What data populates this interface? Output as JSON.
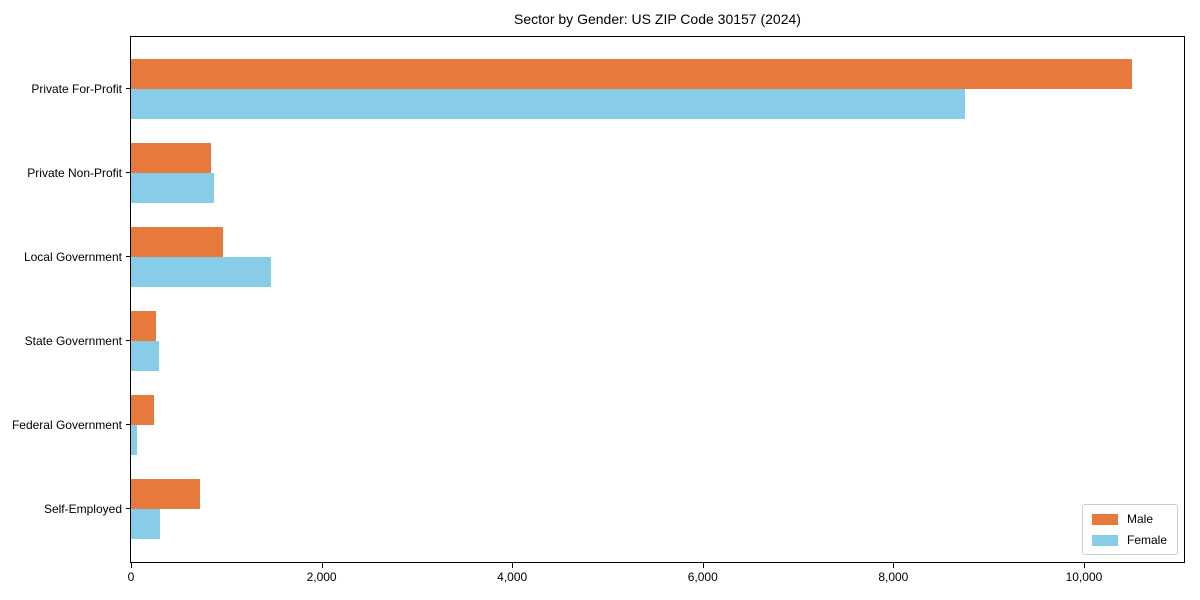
{
  "chart_data": {
    "type": "bar",
    "orientation": "horizontal",
    "title": "Sector by Gender: US ZIP Code 30157 (2024)",
    "categories": [
      "Private For-Profit",
      "Private Non-Profit",
      "Local Government",
      "State Government",
      "Federal Government",
      "Self-Employed"
    ],
    "series": [
      {
        "name": "Male",
        "color": "#E8793D",
        "values": [
          10500,
          840,
          970,
          260,
          245,
          720
        ]
      },
      {
        "name": "Female",
        "color": "#87CDE8",
        "values": [
          8750,
          870,
          1470,
          290,
          60,
          300
        ]
      }
    ],
    "xlim": [
      0,
      11050
    ],
    "xticks": [
      0,
      2000,
      4000,
      6000,
      8000,
      10000
    ],
    "xtick_labels": [
      "0",
      "2,000",
      "4,000",
      "6,000",
      "8,000",
      "10,000"
    ],
    "grid": false,
    "legend_position": "lower right",
    "background_color": "#ffffff",
    "spine_color": "#000000"
  }
}
